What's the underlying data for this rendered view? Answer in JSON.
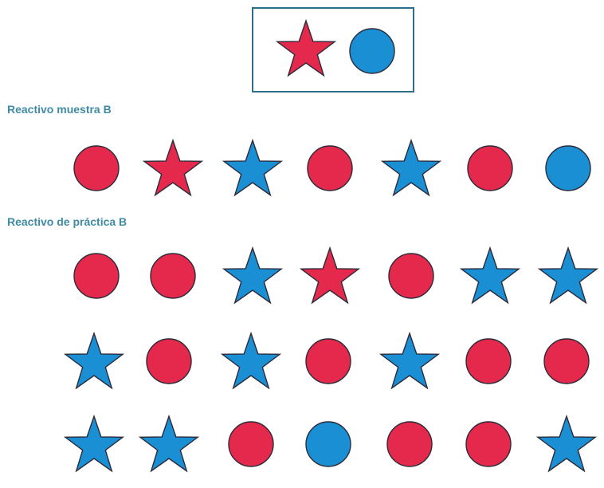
{
  "colors": {
    "red": "#e5294c",
    "blue": "#1a8fd4",
    "frame": "#2d6f8a",
    "label": "#3f8aa4"
  },
  "key": {
    "shapes": [
      "star-red",
      "circle-blue"
    ]
  },
  "sample": {
    "label": "Reactivo muestra B",
    "rows": [
      [
        "circle-red",
        "star-red",
        "star-blue",
        "circle-red",
        "star-blue",
        "circle-red",
        "circle-blue"
      ]
    ]
  },
  "practice": {
    "label": "Reactivo de práctica B",
    "rows": [
      [
        "circle-red",
        "circle-red",
        "star-blue",
        "star-red",
        "circle-red",
        "star-blue",
        "star-blue"
      ],
      [
        "star-blue",
        "circle-red",
        "star-blue",
        "circle-red",
        "star-blue",
        "circle-red",
        "circle-red"
      ],
      [
        "star-blue",
        "star-blue",
        "circle-red",
        "circle-blue",
        "circle-red",
        "circle-red",
        "star-blue"
      ]
    ]
  }
}
